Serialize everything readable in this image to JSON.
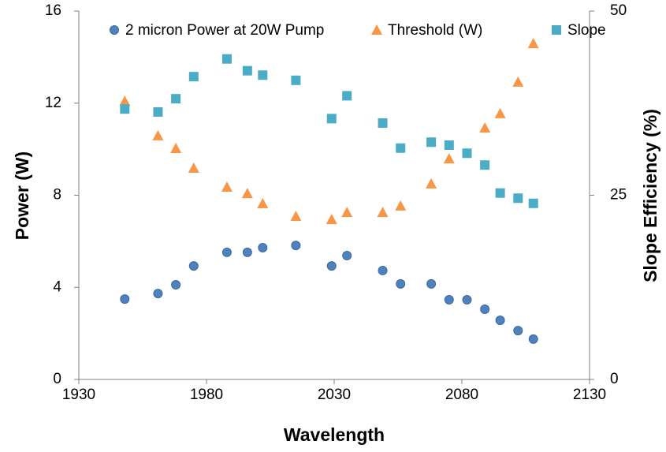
{
  "chart_data": {
    "type": "scatter",
    "x_label": "Wavelength",
    "y_label": "Power (W)",
    "y2_label": "Slope Efficiency (%)",
    "x": [
      1948,
      1961,
      1968,
      1975,
      1988,
      1996,
      2002,
      2015,
      2029,
      2035,
      2049,
      2056,
      2068,
      2075,
      2082,
      2089,
      2095,
      2102,
      2108
    ],
    "series": [
      {
        "name": "2 micron Power at 20W Pump",
        "color": "#4f81bd",
        "marker": "circle",
        "values": [
          3.49,
          3.73,
          4.11,
          4.93,
          5.52,
          5.52,
          5.72,
          5.82,
          4.93,
          5.38,
          4.73,
          4.15,
          4.15,
          3.46,
          3.46,
          3.05,
          2.57,
          2.12,
          1.75
        ]
      },
      {
        "name": "Threshold (W)",
        "color": "#f79646",
        "marker": "triangle",
        "values": [
          12.09,
          10.59,
          10.04,
          9.18,
          8.36,
          8.08,
          7.64,
          7.09,
          6.95,
          7.26,
          7.26,
          7.54,
          8.5,
          9.59,
          null,
          10.93,
          11.55,
          12.92,
          14.59
        ]
      },
      {
        "name": "Slope",
        "color": "#4bacc6",
        "marker": "square",
        "axis": "y2",
        "values": [
          36.7,
          36.3,
          38.1,
          41.1,
          43.5,
          41.9,
          41.3,
          40.6,
          35.4,
          38.5,
          34.8,
          31.4,
          32.2,
          31.8,
          30.7,
          29.1,
          25.3,
          24.6,
          23.9
        ]
      }
    ],
    "xlim": [
      1930,
      2130
    ],
    "xticks": [
      1930,
      1980,
      2030,
      2080,
      2130
    ],
    "ylim": [
      0,
      16
    ],
    "yticks": [
      0,
      4,
      8,
      12,
      16
    ],
    "y2lim": [
      0,
      50
    ],
    "y2ticks": [
      0,
      25,
      50
    ],
    "grid": false,
    "legend": "top"
  }
}
